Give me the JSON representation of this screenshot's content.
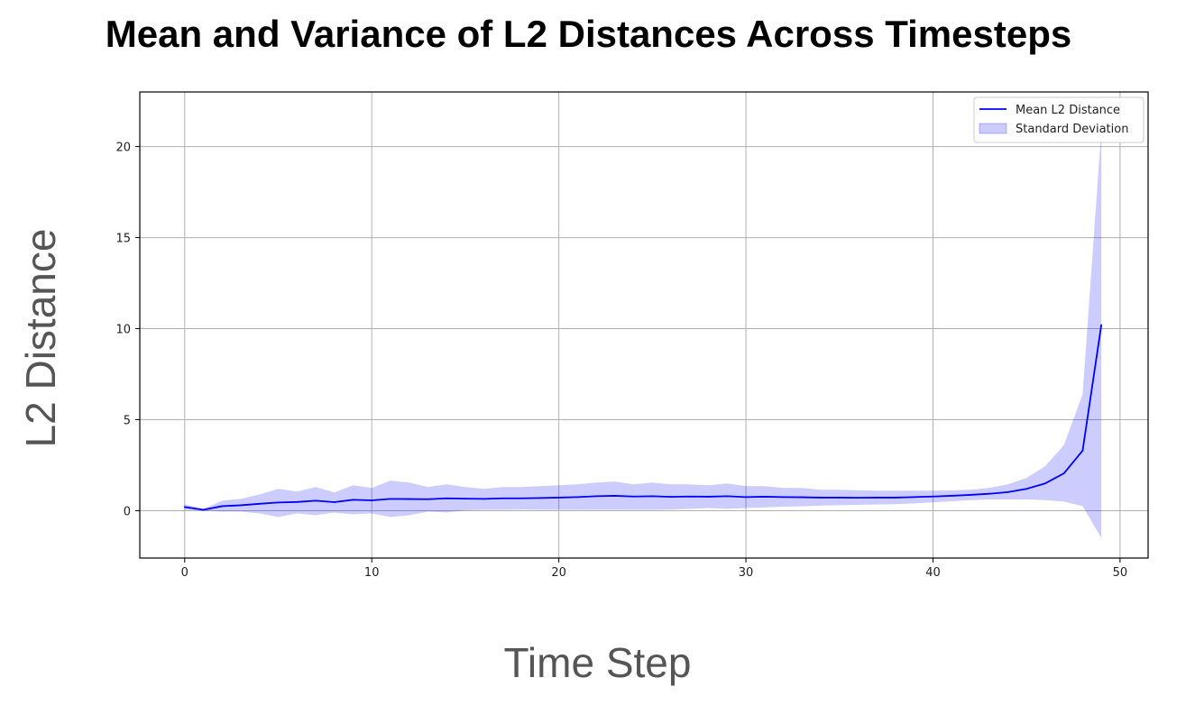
{
  "chart_data": {
    "type": "line",
    "title": "Mean and Variance of L2 Distances Across Timesteps",
    "xlabel": "Time Step",
    "ylabel": "L2 Distance",
    "xlim": [
      -2.4,
      51.5
    ],
    "ylim": [
      -2.6,
      23.0
    ],
    "xticks": [
      0,
      10,
      20,
      30,
      40,
      50
    ],
    "yticks": [
      0,
      5,
      10,
      15,
      20
    ],
    "grid": true,
    "legend_position": "top-right",
    "x": [
      0,
      1,
      2,
      3,
      4,
      5,
      6,
      7,
      8,
      9,
      10,
      11,
      12,
      13,
      14,
      15,
      16,
      17,
      18,
      19,
      20,
      21,
      22,
      23,
      24,
      25,
      26,
      27,
      28,
      29,
      30,
      31,
      32,
      33,
      34,
      35,
      36,
      37,
      38,
      39,
      40,
      41,
      42,
      43,
      44,
      45,
      46,
      47,
      48,
      49
    ],
    "series": [
      {
        "name": "Mean L2 Distance",
        "kind": "line",
        "color": "#0000ff",
        "values": [
          0.2,
          0.05,
          0.25,
          0.3,
          0.38,
          0.45,
          0.48,
          0.55,
          0.47,
          0.6,
          0.57,
          0.65,
          0.64,
          0.63,
          0.68,
          0.66,
          0.65,
          0.68,
          0.68,
          0.7,
          0.72,
          0.75,
          0.8,
          0.82,
          0.78,
          0.8,
          0.76,
          0.78,
          0.77,
          0.8,
          0.75,
          0.77,
          0.75,
          0.74,
          0.72,
          0.72,
          0.71,
          0.72,
          0.72,
          0.75,
          0.78,
          0.82,
          0.87,
          0.93,
          1.02,
          1.2,
          1.5,
          2.05,
          3.3,
          10.2
        ]
      },
      {
        "name": "Standard Deviation",
        "kind": "band",
        "color": "#0000ff",
        "opacity": 0.2,
        "upper": [
          0.35,
          0.1,
          0.55,
          0.65,
          0.9,
          1.2,
          1.05,
          1.3,
          1.0,
          1.4,
          1.25,
          1.65,
          1.55,
          1.3,
          1.45,
          1.3,
          1.2,
          1.3,
          1.3,
          1.35,
          1.4,
          1.45,
          1.55,
          1.6,
          1.45,
          1.55,
          1.45,
          1.45,
          1.4,
          1.5,
          1.35,
          1.35,
          1.25,
          1.25,
          1.15,
          1.15,
          1.12,
          1.1,
          1.1,
          1.1,
          1.1,
          1.12,
          1.15,
          1.25,
          1.45,
          1.8,
          2.45,
          3.6,
          6.4,
          20.9
        ],
        "lower": [
          0.05,
          0.0,
          -0.05,
          -0.05,
          -0.15,
          -0.35,
          -0.15,
          -0.25,
          -0.1,
          -0.2,
          -0.15,
          -0.35,
          -0.25,
          -0.05,
          -0.1,
          0.02,
          0.05,
          0.05,
          0.06,
          0.05,
          0.05,
          0.05,
          0.05,
          0.05,
          0.05,
          0.05,
          0.06,
          0.1,
          0.14,
          0.1,
          0.15,
          0.18,
          0.22,
          0.24,
          0.28,
          0.3,
          0.32,
          0.34,
          0.36,
          0.4,
          0.46,
          0.52,
          0.58,
          0.62,
          0.62,
          0.62,
          0.58,
          0.5,
          0.25,
          -1.5
        ]
      }
    ]
  }
}
